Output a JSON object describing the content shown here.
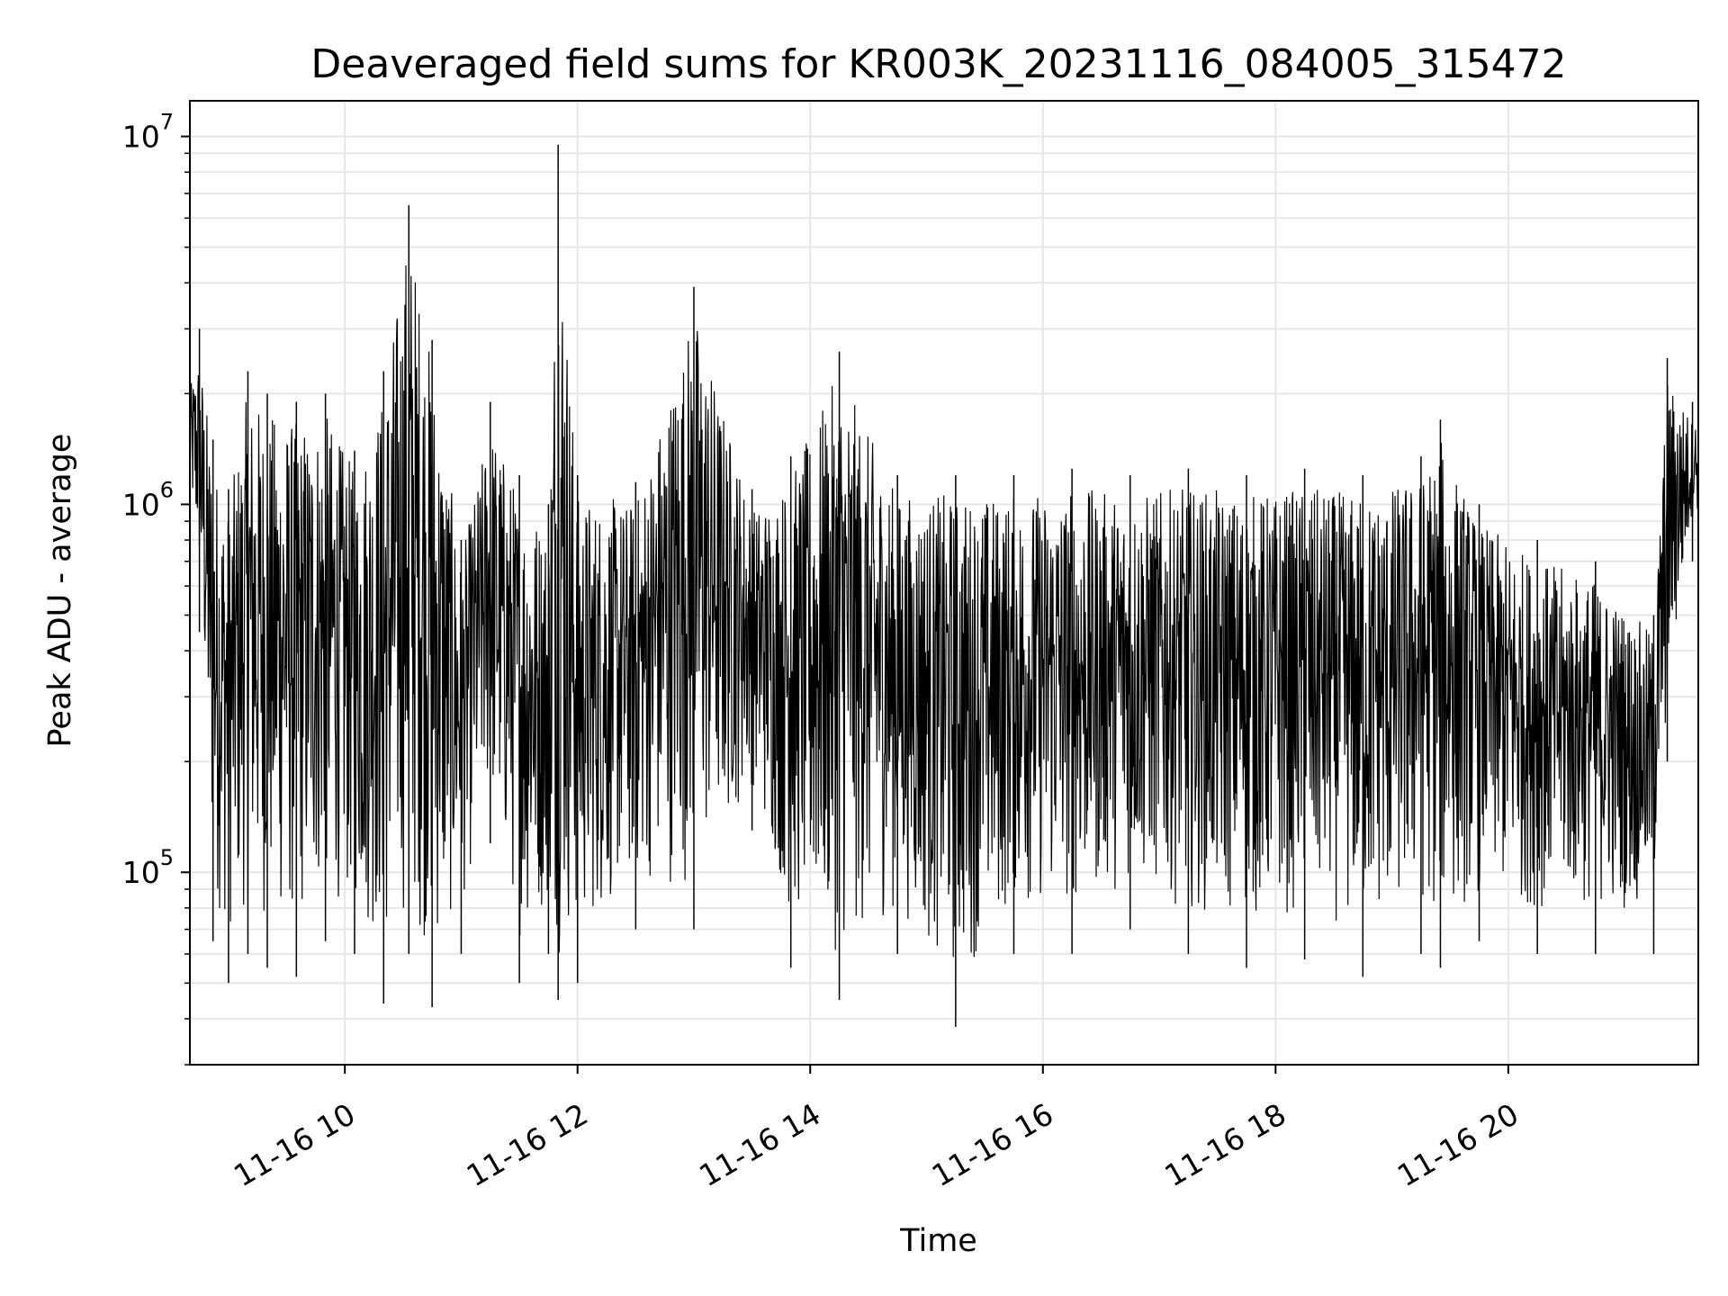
{
  "chart_data": {
    "type": "line",
    "title": "Deaveraged field sums for KR003K_20231116_084005_315472",
    "xlabel": "Time",
    "ylabel": "Peak ADU - average",
    "yscale": "log",
    "ylim": [
      30000,
      12500000
    ],
    "xlim": [
      "2023-11-16T08:40:05",
      "2023-11-16T21:38:00"
    ],
    "x_ticks": [
      "11-16 10",
      "11-16 12",
      "11-16 14",
      "11-16 16",
      "11-16 18",
      "11-16 20"
    ],
    "y_ticks": [
      {
        "base": "10",
        "exp": "5",
        "value": 100000
      },
      {
        "base": "10",
        "exp": "6",
        "value": 1000000
      },
      {
        "base": "10",
        "exp": "7",
        "value": 10000000
      }
    ],
    "grid": true,
    "line_color": "#000000",
    "series": [
      {
        "name": "",
        "x": [
          "2023-11-16T08:40",
          "2023-11-16T08:45",
          "2023-11-16T08:52",
          "2023-11-16T09:00",
          "2023-11-16T09:10",
          "2023-11-16T09:20",
          "2023-11-16T09:35",
          "2023-11-16T09:50",
          "2023-11-16T10:05",
          "2023-11-16T10:20",
          "2023-11-16T10:33",
          "2023-11-16T10:45",
          "2023-11-16T11:00",
          "2023-11-16T11:15",
          "2023-11-16T11:30",
          "2023-11-16T11:45",
          "2023-11-16T11:50",
          "2023-11-16T12:00",
          "2023-11-16T12:30",
          "2023-11-16T13:00",
          "2023-11-16T13:30",
          "2023-11-16T13:50",
          "2023-11-16T14:15",
          "2023-11-16T14:45",
          "2023-11-16T15:15",
          "2023-11-16T15:45",
          "2023-11-16T16:15",
          "2023-11-16T16:45",
          "2023-11-16T17:15",
          "2023-11-16T17:45",
          "2023-11-16T18:15",
          "2023-11-16T18:45",
          "2023-11-16T19:15",
          "2023-11-16T19:25",
          "2023-11-16T19:45",
          "2023-11-16T20:15",
          "2023-11-16T20:45",
          "2023-11-16T21:15",
          "2023-11-16T21:22",
          "2023-11-16T21:35"
        ],
        "y_high": [
          2300000,
          3000000,
          1500000,
          1100000,
          2300000,
          2000000,
          1900000,
          2000000,
          1400000,
          2300000,
          6500000,
          2800000,
          800000,
          1900000,
          1200000,
          1000000,
          9500000,
          1200000,
          1150000,
          3900000,
          1100000,
          1350000,
          2600000,
          1200000,
          1200000,
          1200000,
          1250000,
          1200000,
          1250000,
          1200000,
          1250000,
          1200000,
          1350000,
          1700000,
          1000000,
          800000,
          700000,
          500000,
          2500000,
          1900000
        ],
        "y_low": [
          800000,
          450000,
          65000,
          50000,
          60000,
          55000,
          52000,
          65000,
          60000,
          44000,
          60000,
          43000,
          60000,
          120000,
          50000,
          60000,
          45000,
          50000,
          70000,
          70000,
          130000,
          55000,
          45000,
          60000,
          38000,
          60000,
          60000,
          70000,
          60000,
          55000,
          58000,
          52000,
          60000,
          55000,
          65000,
          60000,
          60000,
          60000,
          200000,
          700000
        ]
      }
    ]
  }
}
